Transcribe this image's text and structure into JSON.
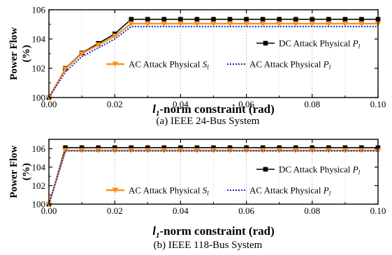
{
  "colors": {
    "dc": "#000000",
    "ac_s": "#f7941d",
    "ac_p": "#1f1fd1"
  },
  "chart_data": [
    {
      "type": "line",
      "caption": "(a) IEEE 24-Bus System",
      "ylabel_line1": "Power Flow",
      "ylabel_line2": "(%)",
      "xlabel_l": "l",
      "xlabel_sub": "1",
      "xlabel_rest": "-norm constraint (rad)",
      "xlim": [
        0,
        0.1
      ],
      "ylim": [
        100,
        106
      ],
      "xticks": [
        0,
        0.02,
        0.04,
        0.06,
        0.08,
        0.1
      ],
      "xtick_labels": [
        "0.00",
        "0.02",
        "0.04",
        "0.06",
        "0.08",
        "0.10"
      ],
      "yticks": [
        100,
        102,
        104,
        106
      ],
      "ytick_labels": [
        "100",
        "102",
        "104",
        "106"
      ],
      "grid": "vertical dotted",
      "x": [
        0,
        0.005,
        0.01,
        0.015,
        0.02,
        0.025,
        0.03,
        0.035,
        0.04,
        0.045,
        0.05,
        0.055,
        0.06,
        0.065,
        0.07,
        0.075,
        0.08,
        0.085,
        0.09,
        0.095,
        0.1
      ],
      "series": [
        {
          "key": "dc",
          "label": "DC Attack Physical ",
          "label_var": "P",
          "label_sub": "l",
          "marker": "square",
          "style": "solid",
          "values": [
            100,
            102.0,
            103.05,
            103.7,
            104.35,
            105.35,
            105.35,
            105.35,
            105.35,
            105.35,
            105.35,
            105.35,
            105.35,
            105.35,
            105.35,
            105.35,
            105.35,
            105.35,
            105.35,
            105.35,
            105.35
          ]
        },
        {
          "key": "ac_s",
          "label": "AC Attack Physical ",
          "label_var": "S",
          "label_sub": "l",
          "marker": "triangle-down",
          "style": "solid",
          "values": [
            100,
            101.95,
            103.0,
            103.6,
            104.2,
            105.05,
            105.05,
            105.05,
            105.05,
            105.05,
            105.05,
            105.05,
            105.05,
            105.05,
            105.05,
            105.05,
            105.05,
            105.05,
            105.05,
            105.05,
            105.05
          ]
        },
        {
          "key": "ac_p",
          "label": "AC Attack Physical ",
          "label_var": "P",
          "label_sub": "l",
          "marker": "none",
          "style": "dotted",
          "values": [
            100,
            101.75,
            102.8,
            103.4,
            104.0,
            104.85,
            104.85,
            104.85,
            104.85,
            104.85,
            104.85,
            104.85,
            104.85,
            104.85,
            104.85,
            104.85,
            104.85,
            104.85,
            104.85,
            104.85,
            104.85
          ]
        }
      ]
    },
    {
      "type": "line",
      "caption": "(b) IEEE 118-Bus System",
      "ylabel_line1": "Power Flow",
      "ylabel_line2": "(%)",
      "xlabel_l": "l",
      "xlabel_sub": "1",
      "xlabel_rest": "-norm constraint (rad)",
      "xlim": [
        0,
        0.1
      ],
      "ylim": [
        100,
        107
      ],
      "xticks": [
        0,
        0.02,
        0.04,
        0.06,
        0.08,
        0.1
      ],
      "xtick_labels": [
        "0.00",
        "0.02",
        "0.04",
        "0.06",
        "0.08",
        "0.10"
      ],
      "yticks": [
        100,
        102,
        104,
        106
      ],
      "ytick_labels": [
        "100",
        "102",
        "104",
        "106"
      ],
      "grid": "vertical dotted",
      "x": [
        0,
        0.005,
        0.01,
        0.015,
        0.02,
        0.025,
        0.03,
        0.035,
        0.04,
        0.045,
        0.05,
        0.055,
        0.06,
        0.065,
        0.07,
        0.075,
        0.08,
        0.085,
        0.09,
        0.095,
        0.1
      ],
      "series": [
        {
          "key": "dc",
          "label": "DC Attack Physical ",
          "label_var": "P",
          "label_sub": "l",
          "marker": "square",
          "style": "solid",
          "values": [
            100,
            106.1,
            106.1,
            106.1,
            106.1,
            106.1,
            106.1,
            106.1,
            106.1,
            106.1,
            106.1,
            106.1,
            106.1,
            106.1,
            106.1,
            106.1,
            106.1,
            106.1,
            106.1,
            106.1,
            106.1
          ]
        },
        {
          "key": "ac_s",
          "label": "AC Attack Physical ",
          "label_var": "S",
          "label_sub": "l",
          "marker": "triangle-down",
          "style": "solid",
          "values": [
            100,
            105.8,
            105.8,
            105.8,
            105.8,
            105.8,
            105.8,
            105.8,
            105.8,
            105.8,
            105.8,
            105.8,
            105.8,
            105.8,
            105.8,
            105.8,
            105.8,
            105.8,
            105.8,
            105.8,
            105.8
          ]
        },
        {
          "key": "ac_p",
          "label": "AC Attack Physical ",
          "label_var": "P",
          "label_sub": "l",
          "marker": "none",
          "style": "dotted",
          "values": [
            100,
            105.75,
            105.75,
            105.75,
            105.75,
            105.75,
            105.75,
            105.75,
            105.75,
            105.75,
            105.75,
            105.75,
            105.75,
            105.75,
            105.75,
            105.75,
            105.75,
            105.75,
            105.75,
            105.75,
            105.75
          ]
        }
      ]
    }
  ]
}
